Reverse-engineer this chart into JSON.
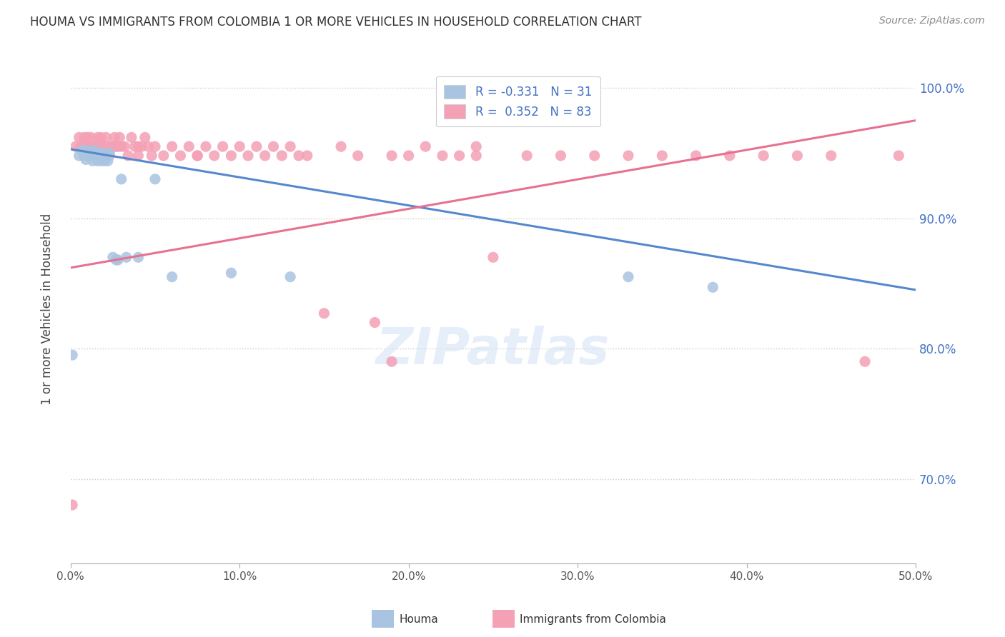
{
  "title": "HOUMA VS IMMIGRANTS FROM COLOMBIA 1 OR MORE VEHICLES IN HOUSEHOLD CORRELATION CHART",
  "source": "Source: ZipAtlas.com",
  "ylabel": "1 or more Vehicles in Household",
  "yticks": [
    "100.0%",
    "90.0%",
    "80.0%",
    "70.0%"
  ],
  "ytick_values": [
    1.0,
    0.9,
    0.8,
    0.7
  ],
  "xlim": [
    0.0,
    0.5
  ],
  "ylim": [
    0.635,
    1.025
  ],
  "houma_color": "#a8c4e0",
  "colombia_color": "#f4a0b5",
  "houma_line_color": "#5588cc",
  "colombia_line_color": "#e87090",
  "houma_R": -0.331,
  "houma_N": 31,
  "colombia_R": 0.352,
  "colombia_N": 83,
  "houma_points_x": [
    0.001,
    0.005,
    0.007,
    0.008,
    0.009,
    0.01,
    0.011,
    0.012,
    0.013,
    0.014,
    0.015,
    0.016,
    0.017,
    0.018,
    0.019,
    0.02,
    0.021,
    0.022,
    0.023,
    0.025,
    0.027,
    0.028,
    0.03,
    0.033,
    0.04,
    0.05,
    0.06,
    0.095,
    0.13,
    0.33,
    0.38
  ],
  "houma_points_y": [
    0.795,
    0.948,
    0.952,
    0.948,
    0.945,
    0.952,
    0.95,
    0.948,
    0.944,
    0.952,
    0.948,
    0.944,
    0.95,
    0.944,
    0.95,
    0.944,
    0.948,
    0.944,
    0.95,
    0.87,
    0.868,
    0.868,
    0.93,
    0.87,
    0.87,
    0.93,
    0.855,
    0.858,
    0.855,
    0.855,
    0.847
  ],
  "colombia_points_x": [
    0.001,
    0.003,
    0.005,
    0.006,
    0.007,
    0.008,
    0.009,
    0.01,
    0.011,
    0.012,
    0.013,
    0.014,
    0.015,
    0.016,
    0.017,
    0.018,
    0.019,
    0.02,
    0.021,
    0.022,
    0.023,
    0.024,
    0.025,
    0.026,
    0.027,
    0.028,
    0.029,
    0.03,
    0.032,
    0.034,
    0.036,
    0.038,
    0.04,
    0.042,
    0.044,
    0.046,
    0.048,
    0.05,
    0.055,
    0.06,
    0.065,
    0.07,
    0.075,
    0.08,
    0.085,
    0.09,
    0.095,
    0.1,
    0.105,
    0.11,
    0.115,
    0.12,
    0.125,
    0.13,
    0.14,
    0.15,
    0.16,
    0.17,
    0.18,
    0.19,
    0.2,
    0.21,
    0.22,
    0.23,
    0.24,
    0.25,
    0.27,
    0.29,
    0.31,
    0.33,
    0.35,
    0.37,
    0.39,
    0.41,
    0.43,
    0.45,
    0.47,
    0.49,
    0.04,
    0.075,
    0.135,
    0.19,
    0.24
  ],
  "colombia_points_y": [
    0.68,
    0.955,
    0.962,
    0.955,
    0.955,
    0.962,
    0.955,
    0.962,
    0.955,
    0.962,
    0.955,
    0.955,
    0.955,
    0.962,
    0.955,
    0.962,
    0.955,
    0.955,
    0.962,
    0.955,
    0.948,
    0.955,
    0.955,
    0.962,
    0.955,
    0.955,
    0.962,
    0.955,
    0.955,
    0.948,
    0.962,
    0.955,
    0.955,
    0.955,
    0.962,
    0.955,
    0.948,
    0.955,
    0.948,
    0.955,
    0.948,
    0.955,
    0.948,
    0.955,
    0.948,
    0.955,
    0.948,
    0.955,
    0.948,
    0.955,
    0.948,
    0.955,
    0.948,
    0.955,
    0.948,
    0.827,
    0.955,
    0.948,
    0.82,
    0.948,
    0.948,
    0.955,
    0.948,
    0.948,
    0.955,
    0.87,
    0.948,
    0.948,
    0.948,
    0.948,
    0.948,
    0.948,
    0.948,
    0.948,
    0.948,
    0.948,
    0.79,
    0.948,
    0.948,
    0.948,
    0.948,
    0.79,
    0.948
  ],
  "watermark_text": "ZIPatlas",
  "legend_R_color": "#4472c4",
  "legend_N_color": "#333333"
}
